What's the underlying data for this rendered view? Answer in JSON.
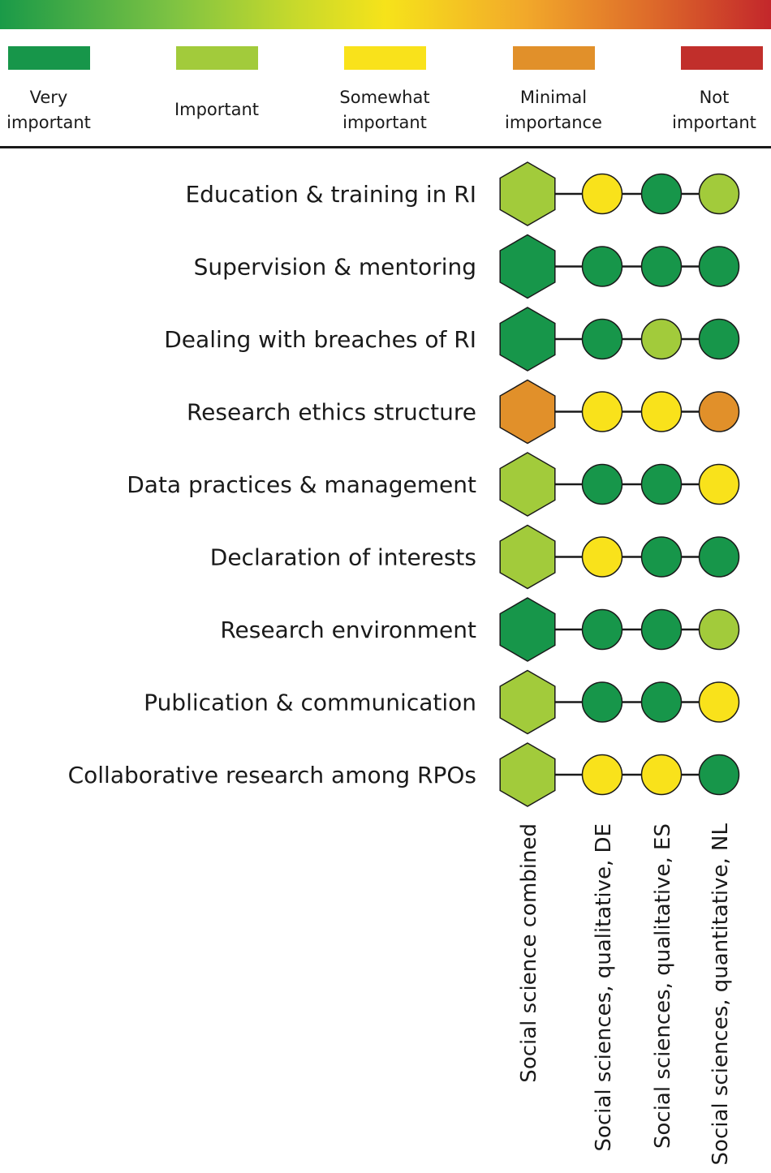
{
  "colors": {
    "very_important": "#17964a",
    "important": "#a2cb3b",
    "somewhat_important": "#f9e21b",
    "minimal_importance": "#e1902a",
    "not_important": "#c12f2b"
  },
  "legend": [
    {
      "key": "very_important",
      "color": "#17964a",
      "lines": [
        "Very",
        "important"
      ]
    },
    {
      "key": "important",
      "color": "#a2cb3b",
      "lines": [
        "Important"
      ]
    },
    {
      "key": "somewhat_important",
      "color": "#f9e21b",
      "lines": [
        "Somewhat",
        "important"
      ]
    },
    {
      "key": "minimal_importance",
      "color": "#e1902a",
      "lines": [
        "Minimal",
        "importance"
      ]
    },
    {
      "key": "not_important",
      "color": "#c12f2b",
      "lines": [
        "Not",
        "important"
      ]
    }
  ],
  "columns": [
    "Social science combined",
    "Social sciences, qualitative, DE",
    "Social sciences, qualitative, ES",
    "Social sciences, quantitative, NL"
  ],
  "rows": [
    {
      "label": "Education & training in RI",
      "ratings": [
        "important",
        "somewhat_important",
        "very_important",
        "important"
      ]
    },
    {
      "label": "Supervision & mentoring",
      "ratings": [
        "very_important",
        "very_important",
        "very_important",
        "very_important"
      ]
    },
    {
      "label": "Dealing with breaches of RI",
      "ratings": [
        "very_important",
        "very_important",
        "important",
        "very_important"
      ]
    },
    {
      "label": "Research ethics structure",
      "ratings": [
        "minimal_importance",
        "somewhat_important",
        "somewhat_important",
        "minimal_importance"
      ]
    },
    {
      "label": "Data practices & management",
      "ratings": [
        "important",
        "very_important",
        "very_important",
        "somewhat_important"
      ]
    },
    {
      "label": "Declaration of interests",
      "ratings": [
        "important",
        "somewhat_important",
        "very_important",
        "very_important"
      ]
    },
    {
      "label": "Research environment",
      "ratings": [
        "very_important",
        "very_important",
        "very_important",
        "important"
      ]
    },
    {
      "label": "Publication & communication",
      "ratings": [
        "important",
        "very_important",
        "very_important",
        "somewhat_important"
      ]
    },
    {
      "label": "Collaborative research among RPOs",
      "ratings": [
        "important",
        "somewhat_important",
        "somewhat_important",
        "very_important"
      ]
    }
  ]
}
